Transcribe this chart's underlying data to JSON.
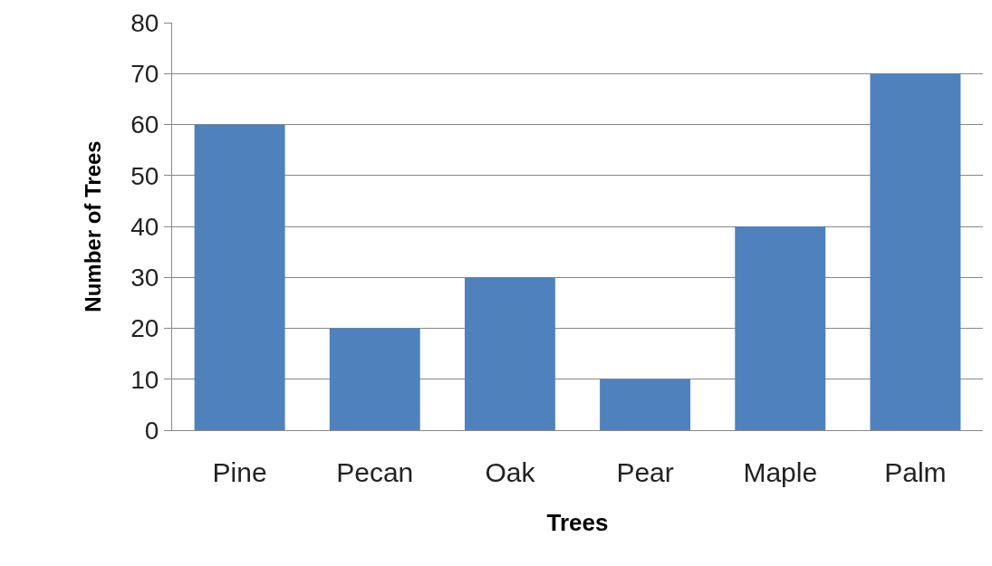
{
  "chart_data": {
    "type": "bar",
    "xlabel": "Trees",
    "ylabel": "Number of Trees",
    "categories": [
      "Pine",
      "Pecan",
      "Oak",
      "Pear",
      "Maple",
      "Palm"
    ],
    "values": [
      60,
      20,
      30,
      10,
      40,
      70
    ],
    "color": "#4f81bd",
    "ylim": [
      0,
      80
    ],
    "yticks": [
      0,
      10,
      20,
      30,
      40,
      50,
      60,
      70,
      80
    ],
    "grid": true
  }
}
